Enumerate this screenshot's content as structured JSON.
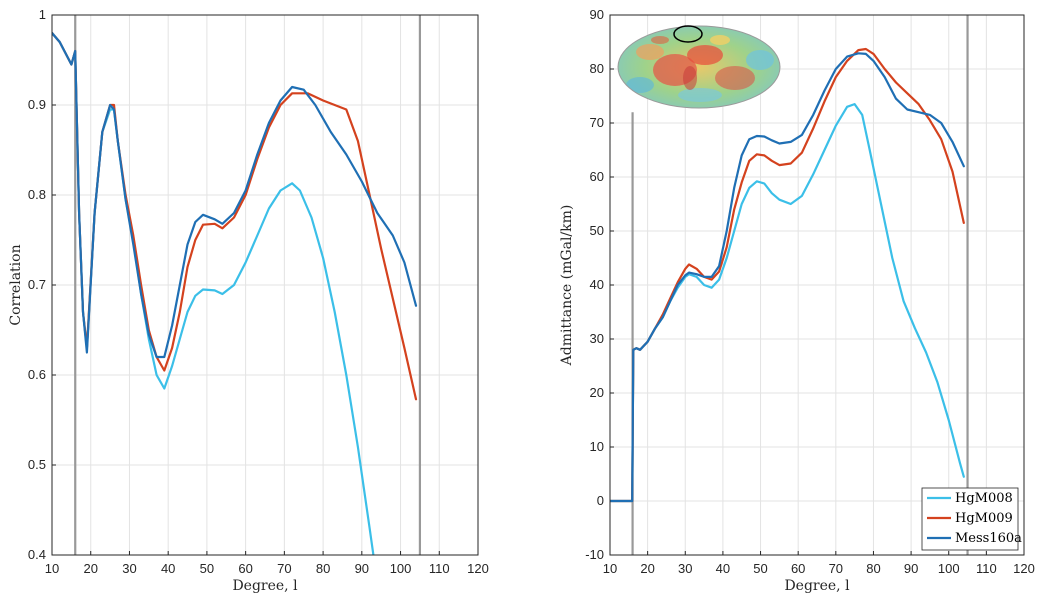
{
  "chart_data": [
    {
      "type": "line",
      "title": "",
      "xlabel": "Degree, l",
      "ylabel": "Correlation",
      "xlim": [
        10,
        120
      ],
      "ylim": [
        0.4,
        1.0
      ],
      "xticks": [
        "10",
        "20",
        "30",
        "40",
        "50",
        "60",
        "70",
        "80",
        "90",
        "100",
        "110",
        "120"
      ],
      "yticks": [
        "0.4",
        "0.5",
        "0.6",
        "0.7",
        "0.8",
        "0.9",
        "1"
      ],
      "grid": true,
      "vertical_markers": [
        16,
        105
      ],
      "series": [
        {
          "name": "HgM008",
          "color": "#3bbfe8",
          "points": [
            [
              10,
              0.98
            ],
            [
              12,
              0.97
            ],
            [
              15,
              0.945
            ],
            [
              16,
              0.96
            ],
            [
              17,
              0.78
            ],
            [
              18,
              0.67
            ],
            [
              19,
              0.63
            ],
            [
              21,
              0.78
            ],
            [
              23,
              0.87
            ],
            [
              25,
              0.895
            ],
            [
              26,
              0.895
            ],
            [
              27,
              0.86
            ],
            [
              29,
              0.795
            ],
            [
              31,
              0.75
            ],
            [
              33,
              0.69
            ],
            [
              35,
              0.64
            ],
            [
              37,
              0.6
            ],
            [
              39,
              0.585
            ],
            [
              41,
              0.61
            ],
            [
              43,
              0.64
            ],
            [
              45,
              0.67
            ],
            [
              47,
              0.688
            ],
            [
              49,
              0.695
            ],
            [
              52,
              0.694
            ],
            [
              54,
              0.69
            ],
            [
              57,
              0.7
            ],
            [
              60,
              0.725
            ],
            [
              63,
              0.755
            ],
            [
              66,
              0.785
            ],
            [
              69,
              0.805
            ],
            [
              72,
              0.813
            ],
            [
              74,
              0.805
            ],
            [
              77,
              0.775
            ],
            [
              80,
              0.73
            ],
            [
              83,
              0.67
            ],
            [
              86,
              0.6
            ],
            [
              89,
              0.52
            ],
            [
              92,
              0.43
            ],
            [
              93,
              0.4
            ]
          ]
        },
        {
          "name": "HgM009",
          "color": "#d4421e",
          "points": [
            [
              10,
              0.98
            ],
            [
              12,
              0.97
            ],
            [
              15,
              0.945
            ],
            [
              16,
              0.96
            ],
            [
              17,
              0.78
            ],
            [
              18,
              0.67
            ],
            [
              19,
              0.63
            ],
            [
              21,
              0.78
            ],
            [
              23,
              0.87
            ],
            [
              25,
              0.9
            ],
            [
              26,
              0.9
            ],
            [
              27,
              0.86
            ],
            [
              29,
              0.8
            ],
            [
              31,
              0.755
            ],
            [
              33,
              0.7
            ],
            [
              35,
              0.65
            ],
            [
              37,
              0.62
            ],
            [
              39,
              0.605
            ],
            [
              41,
              0.63
            ],
            [
              43,
              0.67
            ],
            [
              45,
              0.72
            ],
            [
              47,
              0.75
            ],
            [
              49,
              0.767
            ],
            [
              52,
              0.768
            ],
            [
              54,
              0.763
            ],
            [
              57,
              0.775
            ],
            [
              60,
              0.8
            ],
            [
              63,
              0.84
            ],
            [
              66,
              0.875
            ],
            [
              69,
              0.9
            ],
            [
              72,
              0.913
            ],
            [
              76,
              0.913
            ],
            [
              80,
              0.905
            ],
            [
              83,
              0.9
            ],
            [
              86,
              0.895
            ],
            [
              89,
              0.86
            ],
            [
              92,
              0.8
            ],
            [
              95,
              0.74
            ],
            [
              98,
              0.685
            ],
            [
              101,
              0.63
            ],
            [
              104,
              0.573
            ]
          ]
        },
        {
          "name": "Mess160a",
          "color": "#1f6fb4",
          "points": [
            [
              10,
              0.98
            ],
            [
              12,
              0.97
            ],
            [
              15,
              0.945
            ],
            [
              16,
              0.96
            ],
            [
              17,
              0.78
            ],
            [
              18,
              0.67
            ],
            [
              19,
              0.625
            ],
            [
              21,
              0.78
            ],
            [
              23,
              0.87
            ],
            [
              25,
              0.9
            ],
            [
              26,
              0.895
            ],
            [
              27,
              0.86
            ],
            [
              29,
              0.795
            ],
            [
              31,
              0.745
            ],
            [
              33,
              0.69
            ],
            [
              35,
              0.645
            ],
            [
              37,
              0.62
            ],
            [
              39,
              0.62
            ],
            [
              41,
              0.655
            ],
            [
              43,
              0.7
            ],
            [
              45,
              0.745
            ],
            [
              47,
              0.77
            ],
            [
              49,
              0.778
            ],
            [
              52,
              0.773
            ],
            [
              54,
              0.768
            ],
            [
              57,
              0.78
            ],
            [
              60,
              0.805
            ],
            [
              63,
              0.845
            ],
            [
              66,
              0.88
            ],
            [
              69,
              0.905
            ],
            [
              72,
              0.92
            ],
            [
              75,
              0.917
            ],
            [
              78,
              0.9
            ],
            [
              82,
              0.87
            ],
            [
              86,
              0.845
            ],
            [
              90,
              0.815
            ],
            [
              94,
              0.78
            ],
            [
              98,
              0.755
            ],
            [
              101,
              0.725
            ],
            [
              104,
              0.677
            ]
          ]
        }
      ]
    },
    {
      "type": "line",
      "title": "",
      "xlabel": "Degree, l",
      "ylabel": "Admittance (mGal/km)",
      "xlim": [
        10,
        120
      ],
      "ylim": [
        -10,
        90
      ],
      "xticks": [
        "10",
        "20",
        "30",
        "40",
        "50",
        "60",
        "70",
        "80",
        "90",
        "100",
        "110",
        "120"
      ],
      "yticks": [
        "-10",
        "0",
        "10",
        "20",
        "30",
        "40",
        "50",
        "60",
        "70",
        "80",
        "90"
      ],
      "grid": true,
      "vertical_markers": [
        16,
        105
      ],
      "legend": {
        "position": "bottom-right",
        "entries": [
          "HgM008",
          "HgM009",
          "Mess160a"
        ]
      },
      "series": [
        {
          "name": "HgM008",
          "color": "#3bbfe8",
          "points": [
            [
              10,
              0
            ],
            [
              15.9,
              0
            ],
            [
              16.2,
              28
            ],
            [
              17,
              28.3
            ],
            [
              18,
              28
            ],
            [
              20,
              29.5
            ],
            [
              22,
              32
            ],
            [
              24,
              34
            ],
            [
              26,
              37
            ],
            [
              28,
              39.5
            ],
            [
              30,
              41.5
            ],
            [
              31,
              42
            ],
            [
              33,
              41.5
            ],
            [
              35,
              40
            ],
            [
              37,
              39.5
            ],
            [
              39,
              41
            ],
            [
              41,
              45
            ],
            [
              43,
              50
            ],
            [
              45,
              55
            ],
            [
              47,
              58
            ],
            [
              49,
              59.2
            ],
            [
              51,
              58.8
            ],
            [
              53,
              57
            ],
            [
              55,
              55.8
            ],
            [
              58,
              55
            ],
            [
              61,
              56.5
            ],
            [
              64,
              60.5
            ],
            [
              67,
              65
            ],
            [
              70,
              69.5
            ],
            [
              73,
              73
            ],
            [
              75,
              73.5
            ],
            [
              77,
              71.5
            ],
            [
              79,
              65
            ],
            [
              82,
              55
            ],
            [
              85,
              45
            ],
            [
              88,
              37
            ],
            [
              91,
              32
            ],
            [
              94,
              27.5
            ],
            [
              97,
              22
            ],
            [
              100,
              15
            ],
            [
              103,
              7
            ],
            [
              104,
              4.5
            ]
          ]
        },
        {
          "name": "HgM009",
          "color": "#d4421e",
          "points": [
            [
              10,
              0
            ],
            [
              15.9,
              0
            ],
            [
              16.2,
              28
            ],
            [
              17,
              28.3
            ],
            [
              18,
              28
            ],
            [
              20,
              29.5
            ],
            [
              22,
              32
            ],
            [
              24,
              34.5
            ],
            [
              26,
              37.5
            ],
            [
              28,
              40.5
            ],
            [
              30,
              43
            ],
            [
              31,
              43.8
            ],
            [
              33,
              43
            ],
            [
              35,
              41.5
            ],
            [
              37,
              41
            ],
            [
              39,
              42.5
            ],
            [
              41,
              47
            ],
            [
              43,
              54
            ],
            [
              45,
              59
            ],
            [
              47,
              63
            ],
            [
              49,
              64.2
            ],
            [
              51,
              64
            ],
            [
              53,
              63
            ],
            [
              55,
              62.2
            ],
            [
              58,
              62.5
            ],
            [
              61,
              64.5
            ],
            [
              64,
              69
            ],
            [
              67,
              74
            ],
            [
              70,
              78.5
            ],
            [
              73,
              81.5
            ],
            [
              76,
              83.5
            ],
            [
              78,
              83.7
            ],
            [
              80,
              82.8
            ],
            [
              83,
              80
            ],
            [
              86,
              77.5
            ],
            [
              89,
              75.5
            ],
            [
              92,
              73.5
            ],
            [
              95,
              70.5
            ],
            [
              98,
              67
            ],
            [
              101,
              61
            ],
            [
              104,
              51.5
            ]
          ]
        },
        {
          "name": "Mess160a",
          "color": "#1f6fb4",
          "points": [
            [
              10,
              0
            ],
            [
              15.9,
              0
            ],
            [
              16.2,
              28
            ],
            [
              17,
              28.3
            ],
            [
              18,
              28
            ],
            [
              20,
              29.5
            ],
            [
              22,
              32
            ],
            [
              24,
              34
            ],
            [
              26,
              37
            ],
            [
              28,
              40
            ],
            [
              30,
              41.8
            ],
            [
              31,
              42.3
            ],
            [
              33,
              42
            ],
            [
              35,
              41.5
            ],
            [
              37,
              41.5
            ],
            [
              39,
              43.5
            ],
            [
              41,
              50
            ],
            [
              43,
              58
            ],
            [
              45,
              64
            ],
            [
              47,
              67
            ],
            [
              49,
              67.6
            ],
            [
              51,
              67.5
            ],
            [
              53,
              66.8
            ],
            [
              55,
              66.2
            ],
            [
              58,
              66.5
            ],
            [
              61,
              67.8
            ],
            [
              64,
              71.5
            ],
            [
              67,
              76
            ],
            [
              70,
              80
            ],
            [
              73,
              82.3
            ],
            [
              76,
              82.9
            ],
            [
              78,
              82.8
            ],
            [
              80,
              81.5
            ],
            [
              83,
              78.5
            ],
            [
              86,
              74.5
            ],
            [
              89,
              72.5
            ],
            [
              92,
              72
            ],
            [
              95,
              71.5
            ],
            [
              98,
              70
            ],
            [
              101,
              66.5
            ],
            [
              104,
              62
            ]
          ]
        }
      ]
    }
  ],
  "inset_map": {
    "icon": "mercury-map-inset"
  }
}
